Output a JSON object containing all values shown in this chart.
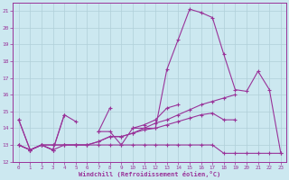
{
  "x": [
    0,
    1,
    2,
    3,
    4,
    5,
    6,
    7,
    8,
    9,
    10,
    11,
    12,
    13,
    14,
    15,
    16,
    17,
    18,
    19,
    20,
    21,
    22,
    23
  ],
  "line1": [
    14.5,
    12.7,
    13.0,
    12.7,
    14.8,
    14.4,
    null,
    13.8,
    13.8,
    13.0,
    14.0,
    14.0,
    14.0,
    17.5,
    19.3,
    21.1,
    20.9,
    20.6,
    18.4,
    16.3,
    16.2,
    17.4,
    16.3,
    12.5
  ],
  "line2": [
    14.5,
    12.7,
    13.0,
    12.7,
    14.8,
    null,
    null,
    13.8,
    15.2,
    null,
    14.0,
    14.2,
    14.5,
    15.2,
    15.4,
    null,
    null,
    null,
    null,
    null,
    null,
    null,
    null,
    null
  ],
  "line3": [
    13.0,
    12.7,
    13.0,
    12.7,
    13.0,
    13.0,
    13.0,
    13.0,
    13.0,
    13.0,
    13.0,
    13.0,
    13.0,
    13.0,
    13.0,
    13.0,
    13.0,
    13.0,
    12.5,
    12.5,
    12.5,
    12.5,
    12.5,
    12.5
  ],
  "line4": [
    13.0,
    12.7,
    13.0,
    13.0,
    13.0,
    13.0,
    13.0,
    13.2,
    13.5,
    13.5,
    13.7,
    13.9,
    14.0,
    14.2,
    14.4,
    14.6,
    14.8,
    14.9,
    14.5,
    14.5,
    null,
    null,
    null,
    null
  ],
  "line5": [
    13.0,
    12.7,
    13.0,
    13.0,
    13.0,
    13.0,
    13.0,
    13.2,
    13.5,
    13.5,
    13.7,
    14.0,
    14.3,
    14.5,
    14.8,
    15.1,
    15.4,
    15.6,
    15.8,
    16.0,
    null,
    null,
    null,
    null
  ],
  "bg_color": "#cce8f0",
  "line_color": "#993399",
  "grid_color": "#b0cfd8",
  "xlabel": "Windchill (Refroidissement éolien,°C)",
  "ylabel_ticks": [
    12,
    13,
    14,
    15,
    16,
    17,
    18,
    19,
    20,
    21
  ],
  "xlim": [
    -0.5,
    23.5
  ],
  "ylim": [
    12,
    21.5
  ],
  "marker": "+",
  "markersize": 3,
  "linewidth": 0.8
}
